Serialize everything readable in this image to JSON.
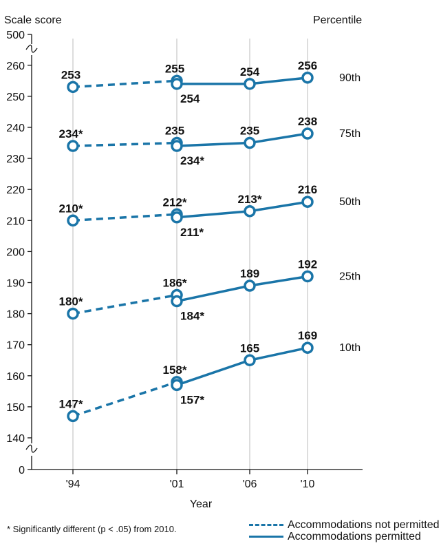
{
  "chart_data": {
    "type": "line",
    "x_label": "Year",
    "y_label": "Scale score",
    "right_label": "Percentile",
    "categories": [
      "'94",
      "'01",
      "'06",
      "'10"
    ],
    "y_ticks": [
      0,
      140,
      150,
      160,
      170,
      180,
      190,
      200,
      210,
      220,
      230,
      240,
      250,
      260,
      500
    ],
    "y_axis_break": "axis breaks between 0 and 140 and between 260 and 500",
    "ylim": [
      140,
      260
    ],
    "colors": {
      "line": "#1a75a8",
      "grid": "#bbbbbb",
      "axis": "#111111"
    },
    "series": [
      {
        "name": "90th",
        "not_permitted": {
          "x": [
            "'94",
            "'01"
          ],
          "y": [
            253,
            255
          ],
          "labels": [
            "253",
            "255"
          ]
        },
        "permitted": {
          "x": [
            "'01",
            "'06",
            "'10"
          ],
          "y": [
            254,
            254,
            256
          ],
          "labels": [
            "254",
            "254",
            "256"
          ]
        }
      },
      {
        "name": "75th",
        "not_permitted": {
          "x": [
            "'94",
            "'01"
          ],
          "y": [
            234,
            235
          ],
          "labels": [
            "234*",
            "235"
          ]
        },
        "permitted": {
          "x": [
            "'01",
            "'06",
            "'10"
          ],
          "y": [
            234,
            235,
            238
          ],
          "labels": [
            "234*",
            "235",
            "238"
          ]
        }
      },
      {
        "name": "50th",
        "not_permitted": {
          "x": [
            "'94",
            "'01"
          ],
          "y": [
            210,
            212
          ],
          "labels": [
            "210*",
            "212*"
          ]
        },
        "permitted": {
          "x": [
            "'01",
            "'06",
            "'10"
          ],
          "y": [
            211,
            213,
            216
          ],
          "labels": [
            "211*",
            "213*",
            "216"
          ]
        }
      },
      {
        "name": "25th",
        "not_permitted": {
          "x": [
            "'94",
            "'01"
          ],
          "y": [
            180,
            186
          ],
          "labels": [
            "180*",
            "186*"
          ]
        },
        "permitted": {
          "x": [
            "'01",
            "'06",
            "'10"
          ],
          "y": [
            184,
            189,
            192
          ],
          "labels": [
            "184*",
            "189",
            "192"
          ]
        }
      },
      {
        "name": "10th",
        "not_permitted": {
          "x": [
            "'94",
            "'01"
          ],
          "y": [
            147,
            158
          ],
          "labels": [
            "147*",
            "158*"
          ]
        },
        "permitted": {
          "x": [
            "'01",
            "'06",
            "'10"
          ],
          "y": [
            157,
            165,
            169
          ],
          "labels": [
            "157*",
            "165",
            "169"
          ]
        }
      }
    ],
    "legend": [
      {
        "label": "Accommodations not permitted",
        "style": "dashed"
      },
      {
        "label": "Accommodations permitted",
        "style": "solid"
      }
    ],
    "footnote": "* Significantly different (p < .05) from 2010."
  }
}
